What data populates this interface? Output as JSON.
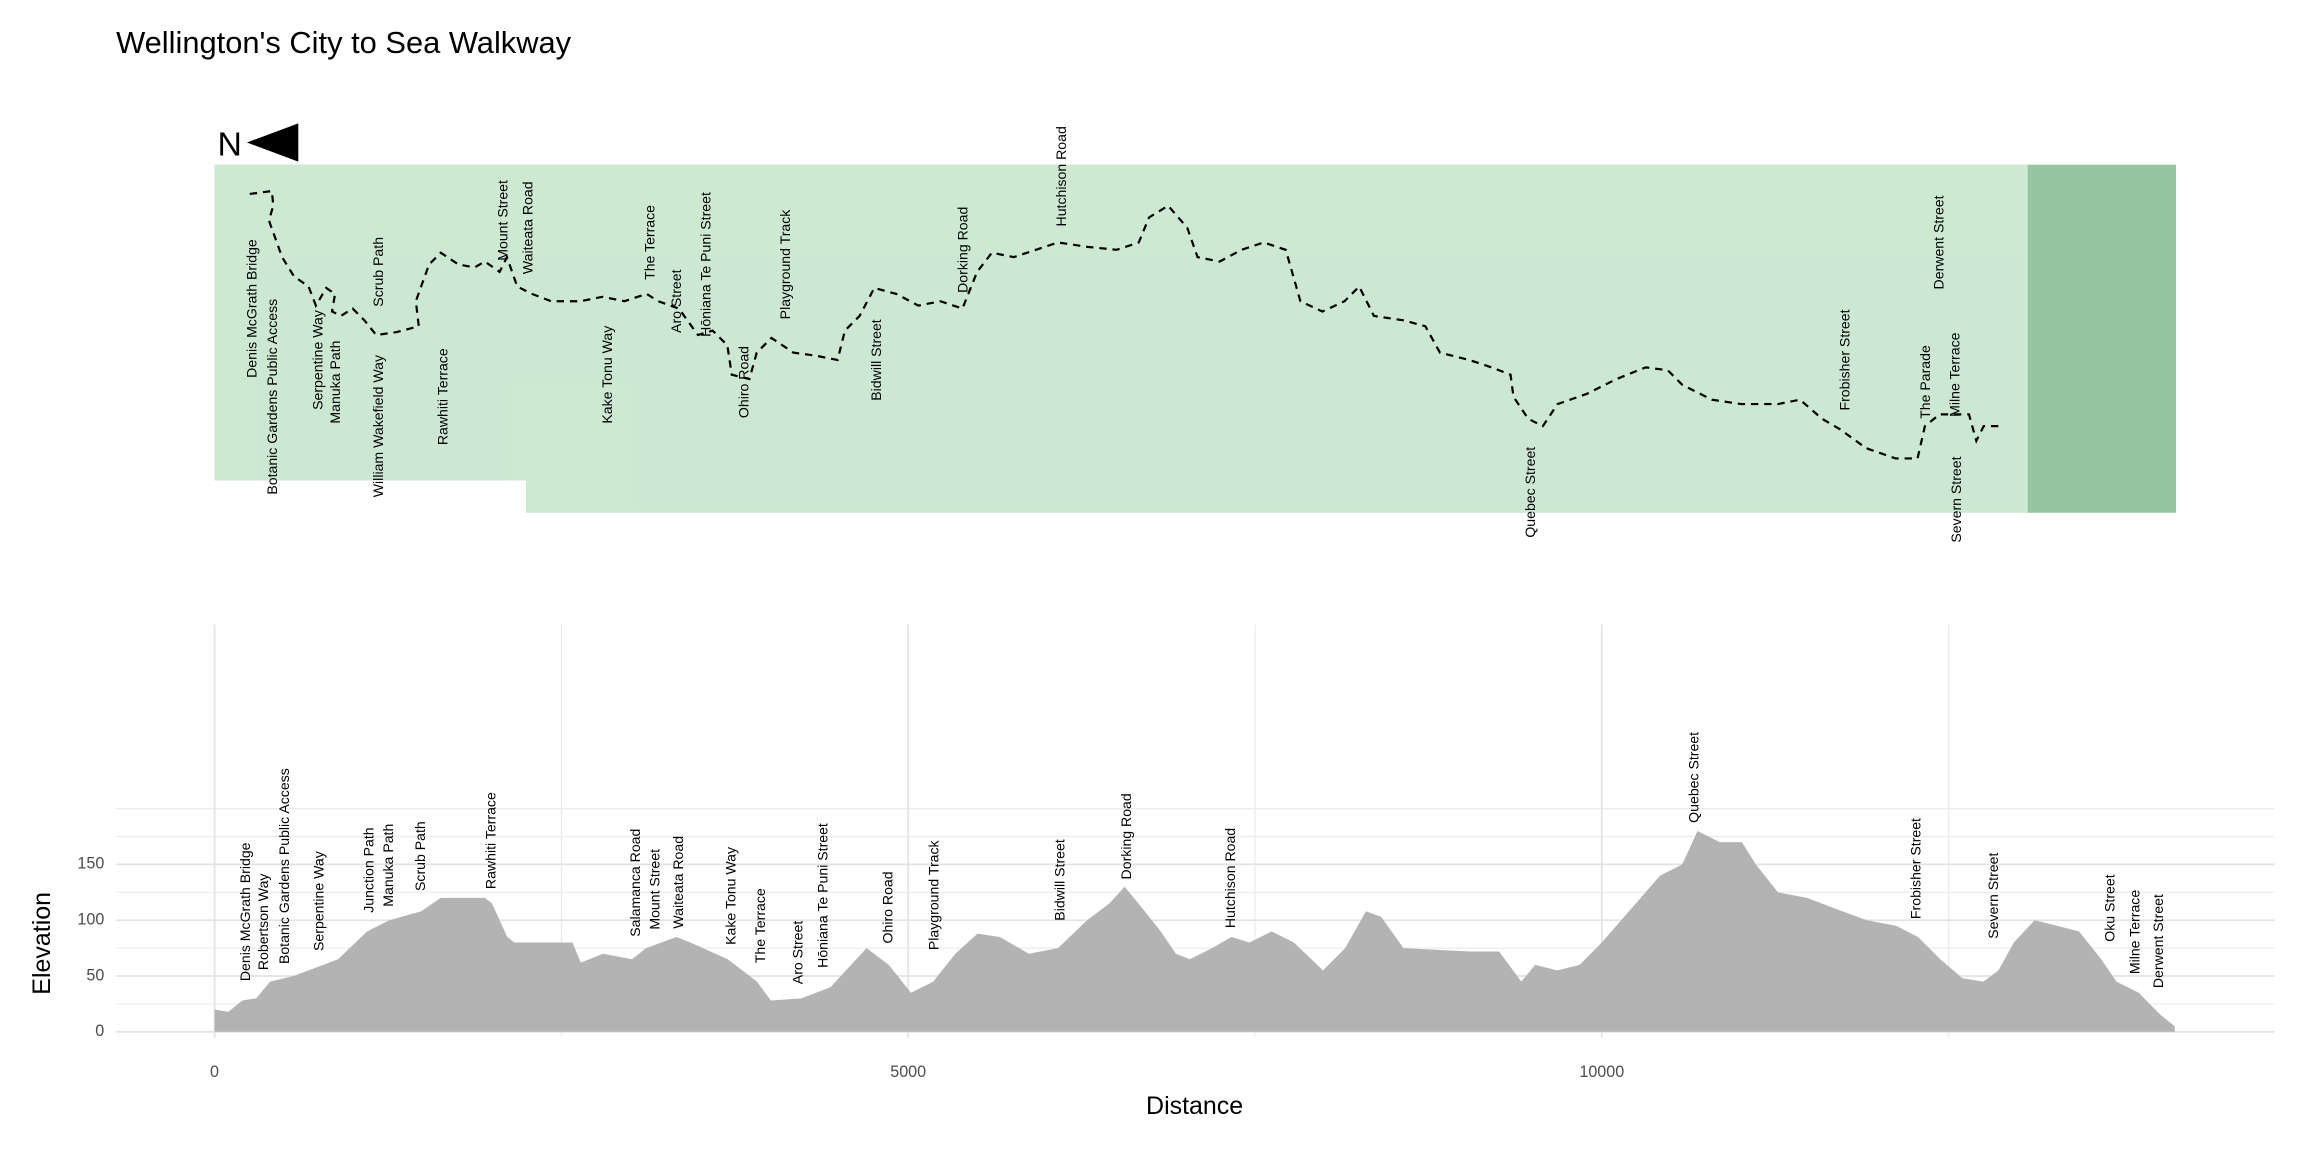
{
  "title": "Wellington's City to Sea Walkway",
  "map": {
    "north_label": "N",
    "streets": [
      "Denis McGrath Bridge",
      "Botanic Gardens Public Access",
      "Serpentine Way",
      "Manuka Path",
      "William Wakefield Way",
      "Scrub Path",
      "Rawhiti Terrace",
      "Mount Street",
      "Waiteata Road",
      "Kake Tonu Way",
      "The Terrace",
      "Aro Street",
      "Hōniana Te Puni Street",
      "Ohiro Road",
      "Playground Track",
      "Bidwill Street",
      "Dorking Road",
      "Hutchison Road",
      "Quebec Street",
      "Frobisher Street",
      "The Parade",
      "Derwent Street",
      "Milne Terrace",
      "Severn Street"
    ]
  },
  "chart_data": {
    "type": "area",
    "x_label": "Distance",
    "y_label": "Elevation",
    "color": "#b3b3b3",
    "x": [
      0,
      100,
      200,
      300,
      400,
      570,
      890,
      1100,
      1260,
      1490,
      1630,
      1950,
      2000,
      2110,
      2160,
      2580,
      2640,
      2800,
      3010,
      3110,
      3330,
      3430,
      3700,
      3910,
      4010,
      4230,
      4440,
      4700,
      4860,
      5020,
      5180,
      5340,
      5500,
      5660,
      5870,
      6080,
      6290,
      6450,
      6560,
      6660,
      6820,
      6930,
      7030,
      7190,
      7330,
      7460,
      7620,
      7780,
      7990,
      8150,
      8300,
      8410,
      8570,
      9050,
      9260,
      9420,
      9520,
      9680,
      9840,
      10000,
      10210,
      10420,
      10580,
      10690,
      10850,
      11010,
      11110,
      11270,
      11480,
      11690,
      11910,
      12120,
      12280,
      12440,
      12600,
      12750,
      12860,
      12970,
      13120,
      13280,
      13440,
      13600,
      13710,
      13870,
      14030,
      14130
    ],
    "values": [
      20,
      18,
      28,
      30,
      45,
      50,
      65,
      90,
      100,
      108,
      120,
      120,
      115,
      85,
      80,
      80,
      62,
      70,
      65,
      75,
      85,
      80,
      65,
      45,
      28,
      30,
      40,
      75,
      60,
      35,
      45,
      70,
      88,
      85,
      70,
      75,
      100,
      115,
      130,
      115,
      90,
      70,
      65,
      75,
      85,
      80,
      90,
      80,
      55,
      75,
      108,
      103,
      75,
      72,
      72,
      45,
      60,
      55,
      60,
      80,
      110,
      140,
      150,
      180,
      170,
      170,
      150,
      125,
      120,
      110,
      100,
      95,
      85,
      65,
      48,
      45,
      55,
      80,
      100,
      95,
      90,
      65,
      45,
      35,
      15,
      5
    ],
    "xlim": [
      -710,
      14850
    ],
    "ylim": [
      -5,
      365
    ],
    "xticks": [
      0,
      5000,
      10000
    ],
    "yticks": [
      0,
      50,
      100,
      150
    ],
    "minor_xgrid": [
      2500,
      7500,
      12500
    ],
    "minor_ygrid": [
      25,
      75,
      125,
      175,
      200
    ],
    "street_labels": [
      {
        "name": "Denis McGrath Bridge",
        "x": 230
      },
      {
        "name": "Robertson Way",
        "x": 360
      },
      {
        "name": "Botanic Gardens Public Access",
        "x": 510
      },
      {
        "name": "Serpentine Way",
        "x": 760
      },
      {
        "name": "Junction Path",
        "x": 1120
      },
      {
        "name": "Manuka Path",
        "x": 1260
      },
      {
        "name": "Scrub Path",
        "x": 1490
      },
      {
        "name": "Rawhiti Terrace",
        "x": 2000
      },
      {
        "name": "Salamanca Road",
        "x": 3040
      },
      {
        "name": "Mount Street",
        "x": 3180
      },
      {
        "name": "Waiteata Road",
        "x": 3350
      },
      {
        "name": "Kake Tonu Way",
        "x": 3730
      },
      {
        "name": "The Terrace",
        "x": 3940
      },
      {
        "name": "Aro Street",
        "x": 4210
      },
      {
        "name": "Hōniana Te Puni Street",
        "x": 4390
      },
      {
        "name": "Ohiro Road",
        "x": 4860
      },
      {
        "name": "Playground Track",
        "x": 5190
      },
      {
        "name": "Bidwill Street",
        "x": 6100
      },
      {
        "name": "Dorking Road",
        "x": 6580
      },
      {
        "name": "Hutchison Road",
        "x": 7330
      },
      {
        "name": "Quebec Street",
        "x": 10670
      },
      {
        "name": "Frobisher Street",
        "x": 12270
      },
      {
        "name": "Severn Street",
        "x": 12830
      },
      {
        "name": "Oku Street",
        "x": 13670
      },
      {
        "name": "Milne Terrace",
        "x": 13850
      },
      {
        "name": "Derwent Street",
        "x": 14020
      }
    ]
  }
}
